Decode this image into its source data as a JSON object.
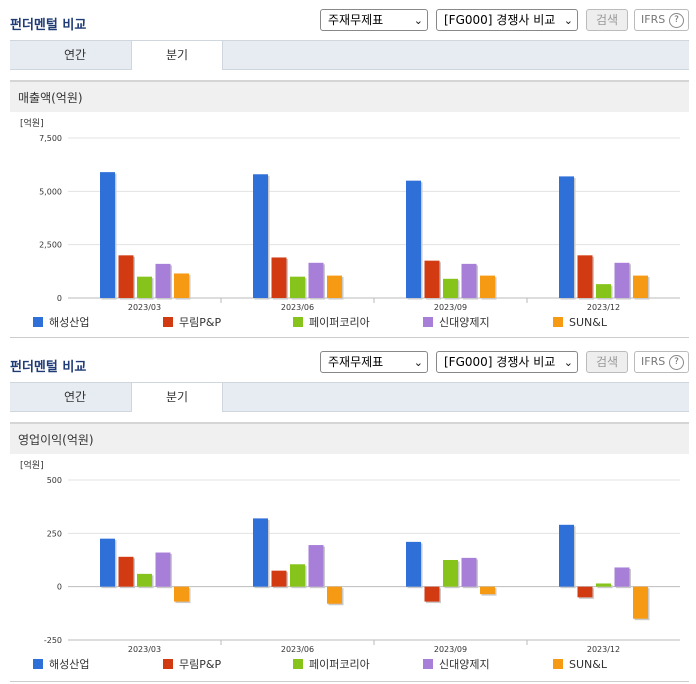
{
  "sections": [
    {
      "title": "펀더멘털 비교",
      "select1": "주재무제표",
      "select2": "[FG000] 경쟁사 비교",
      "search_label": "검색",
      "ifrs_label": "IFRS",
      "ifrs_help": "?",
      "tabs": [
        "연간",
        "분기"
      ],
      "chart_title": "매출액(억원)"
    },
    {
      "title": "펀더멘털 비교",
      "select1": "주재무제표",
      "select2": "[FG000] 경쟁사 비교",
      "search_label": "검색",
      "ifrs_label": "IFRS",
      "ifrs_help": "?",
      "tabs": [
        "연간",
        "분기"
      ],
      "chart_title": "영업이익(억원)"
    }
  ],
  "colors": {
    "해성산업": "#2f6fd8",
    "무림P&P": "#d23a12",
    "페이퍼코리아": "#86c41c",
    "신대양제지": "#a77ed8",
    "SUN&L": "#f59a12"
  },
  "chart_data": [
    {
      "type": "bar",
      "title": "매출액(억원)",
      "unit_label": "[억원]",
      "categories": [
        "2023/03",
        "2023/06",
        "2023/09",
        "2023/12"
      ],
      "ylim": [
        0,
        7500
      ],
      "yticks": [
        0,
        2500,
        5000,
        7500
      ],
      "ytick_labels": [
        "0",
        "2,500",
        "5,000",
        "7,500"
      ],
      "grid": true,
      "legend_position": "bottom",
      "series": [
        {
          "name": "해성산업",
          "values": [
            5900,
            5800,
            5500,
            5700
          ]
        },
        {
          "name": "무림P&P",
          "values": [
            2000,
            1900,
            1750,
            2000
          ]
        },
        {
          "name": "페이퍼코리아",
          "values": [
            1000,
            1000,
            900,
            650
          ]
        },
        {
          "name": "신대양제지",
          "values": [
            1600,
            1650,
            1600,
            1650
          ]
        },
        {
          "name": "SUN&L",
          "values": [
            1150,
            1050,
            1050,
            1050
          ]
        }
      ]
    },
    {
      "type": "bar",
      "title": "영업이익(억원)",
      "unit_label": "[억원]",
      "categories": [
        "2023/03",
        "2023/06",
        "2023/09",
        "2023/12"
      ],
      "ylim": [
        -250,
        500
      ],
      "yticks": [
        -250,
        0,
        250,
        500
      ],
      "ytick_labels": [
        "-250",
        "0",
        "250",
        "500"
      ],
      "grid": true,
      "legend_position": "bottom",
      "series": [
        {
          "name": "해성산업",
          "values": [
            225,
            320,
            210,
            290
          ]
        },
        {
          "name": "무림P&P",
          "values": [
            140,
            75,
            -70,
            -50
          ]
        },
        {
          "name": "페이퍼코리아",
          "values": [
            60,
            105,
            125,
            15
          ]
        },
        {
          "name": "신대양제지",
          "values": [
            160,
            195,
            135,
            90
          ]
        },
        {
          "name": "SUN&L",
          "values": [
            -70,
            -80,
            -35,
            -150
          ]
        }
      ]
    }
  ]
}
